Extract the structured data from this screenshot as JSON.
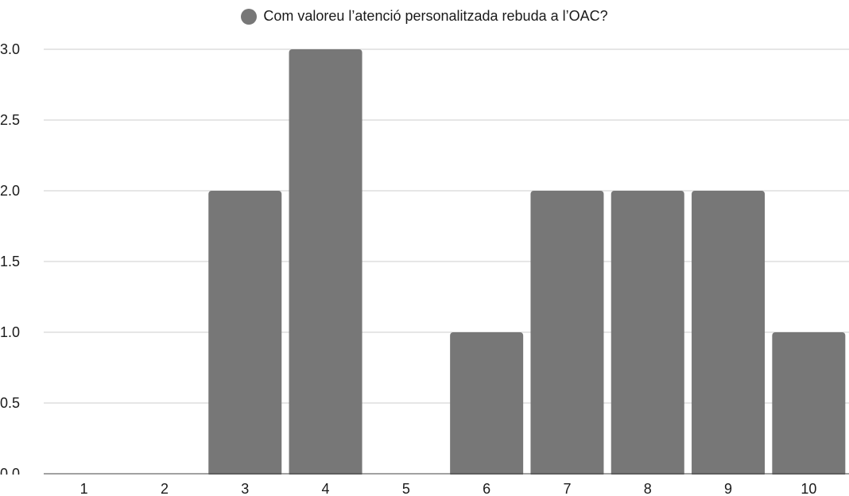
{
  "chart_data": {
    "type": "bar",
    "categories": [
      "1",
      "2",
      "3",
      "4",
      "5",
      "6",
      "7",
      "8",
      "9",
      "10"
    ],
    "series": [
      {
        "name": "Com valoreu l’atenció personalitzada rebuda a l’OAC?",
        "values": [
          0,
          0,
          2,
          3,
          0,
          1,
          2,
          2,
          2,
          1
        ],
        "color": "#777777"
      }
    ],
    "title": "",
    "xlabel": "",
    "ylabel": "",
    "ylim": [
      0,
      3
    ],
    "yticks": [
      "0.0",
      "0.5",
      "1.0",
      "1.5",
      "2.0",
      "2.5",
      "3.0"
    ],
    "grid": true,
    "legend_position": "top"
  }
}
